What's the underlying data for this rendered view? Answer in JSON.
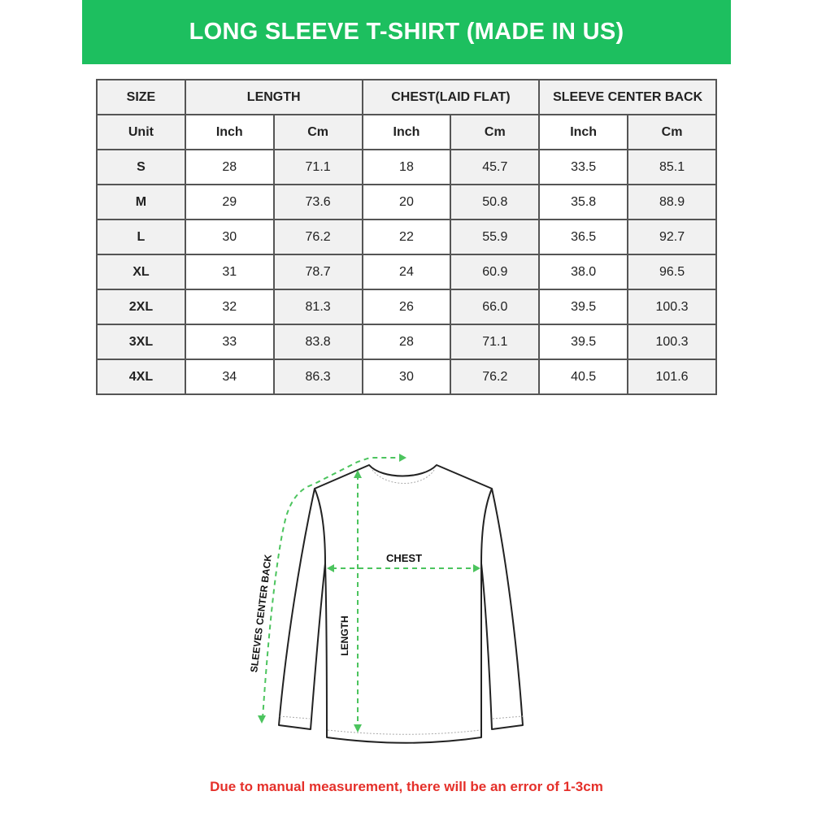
{
  "title": "LONG SLEEVE T-SHIRT (MADE IN US)",
  "colors": {
    "banner": "#1dbf5f",
    "arrow": "#4cc45e",
    "note": "#e5302a"
  },
  "table": {
    "headers": [
      "SIZE",
      "LENGTH",
      "CHEST(LAID FLAT)",
      "SLEEVE CENTER BACK"
    ],
    "units": [
      "Unit",
      "Inch",
      "Cm",
      "Inch",
      "Cm",
      "Inch",
      "Cm"
    ],
    "rows": [
      [
        "S",
        "28",
        "71.1",
        "18",
        "45.7",
        "33.5",
        "85.1"
      ],
      [
        "M",
        "29",
        "73.6",
        "20",
        "50.8",
        "35.8",
        "88.9"
      ],
      [
        "L",
        "30",
        "76.2",
        "22",
        "55.9",
        "36.5",
        "92.7"
      ],
      [
        "XL",
        "31",
        "78.7",
        "24",
        "60.9",
        "38.0",
        "96.5"
      ],
      [
        "2XL",
        "32",
        "81.3",
        "26",
        "66.0",
        "39.5",
        "100.3"
      ],
      [
        "3XL",
        "33",
        "83.8",
        "28",
        "71.1",
        "39.5",
        "100.3"
      ],
      [
        "4XL",
        "34",
        "86.3",
        "30",
        "76.2",
        "40.5",
        "101.6"
      ]
    ]
  },
  "diagram": {
    "chest": "CHEST",
    "length": "LENGTH",
    "sleeve": "SLEEVES CENTER BACK"
  },
  "note": "Due to manual measurement, there will be an error of 1-3cm"
}
